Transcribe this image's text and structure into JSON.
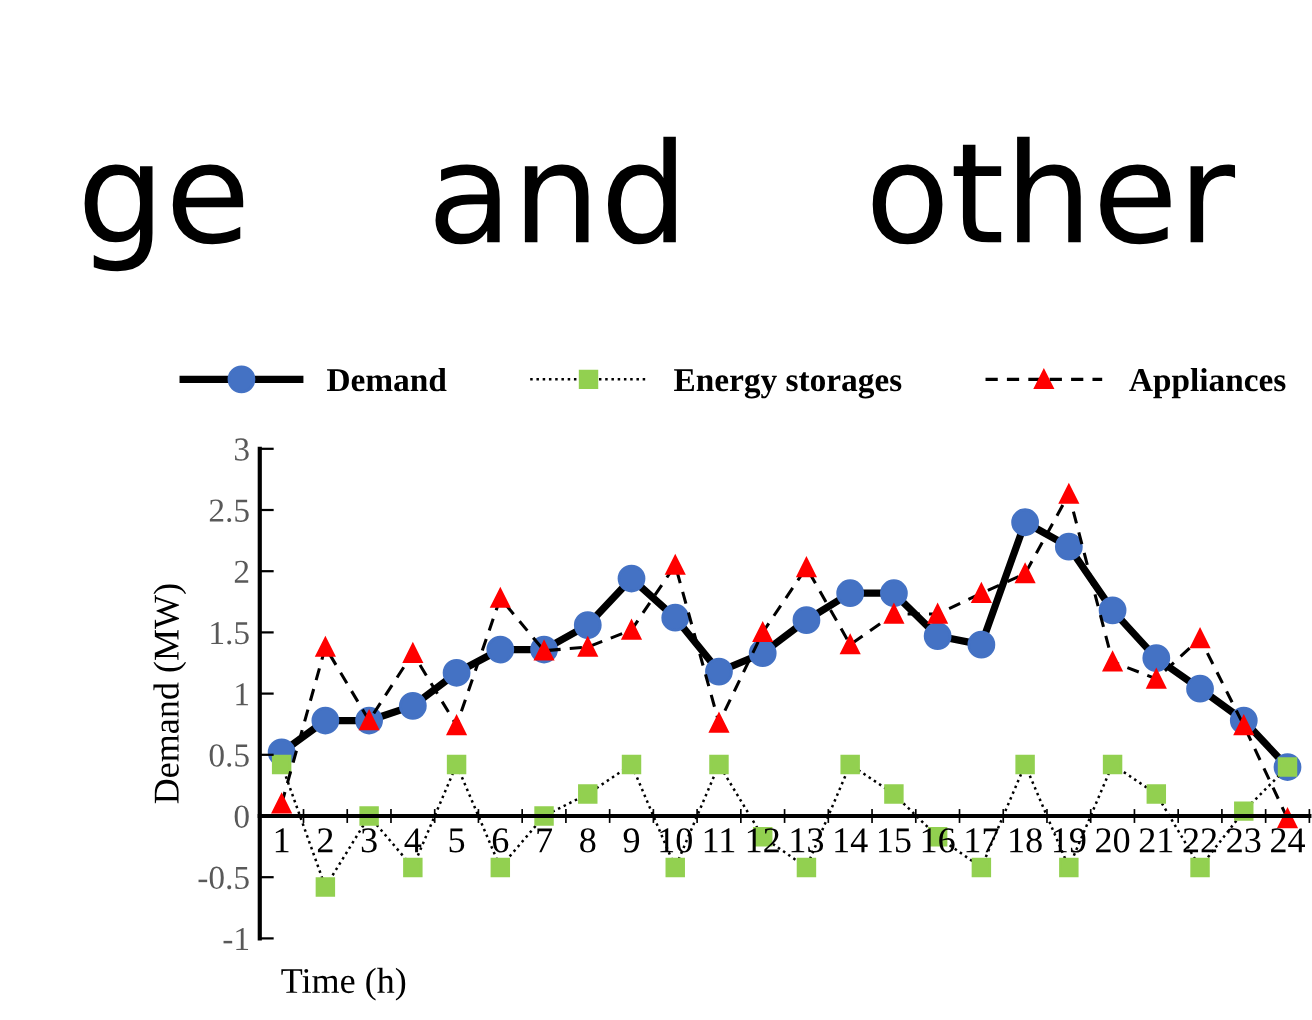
{
  "chart_data": {
    "type": "line",
    "title": "ge    and    other",
    "xlabel": "Time (h)",
    "ylabel": "Demand (MW)",
    "categories": [
      "1",
      "2",
      "3",
      "4",
      "5",
      "6",
      "7",
      "8",
      "9",
      "10",
      "11",
      "12",
      "13",
      "14",
      "15",
      "16",
      "17",
      "18",
      "19",
      "20",
      "21",
      "22",
      "23",
      "24"
    ],
    "series": [
      {
        "name": "Demand",
        "color": "#4472c4",
        "marker": "circle",
        "line_style": "solid",
        "values": [
          0.52,
          0.78,
          0.78,
          0.9,
          1.17,
          1.36,
          1.36,
          1.56,
          1.94,
          1.62,
          1.18,
          1.33,
          1.6,
          1.82,
          1.82,
          1.47,
          1.4,
          2.4,
          2.2,
          1.68,
          1.29,
          1.04,
          0.78,
          0.4
        ]
      },
      {
        "name": "Energy storages",
        "color": "#92d050",
        "marker": "square",
        "line_style": "dotted",
        "values": [
          0.42,
          -0.58,
          0,
          -0.42,
          0.42,
          -0.42,
          0,
          0.18,
          0.42,
          -0.42,
          0.42,
          -0.17,
          -0.42,
          0.42,
          0.18,
          -0.17,
          -0.42,
          0.42,
          -0.42,
          0.42,
          0.18,
          -0.42,
          0.04,
          0.4
        ]
      },
      {
        "name": "Appliances",
        "color": "#ff0000",
        "marker": "triangle",
        "line_style": "dashed",
        "values": [
          0.1,
          1.38,
          0.78,
          1.33,
          0.74,
          1.78,
          1.35,
          1.38,
          1.52,
          2.05,
          0.76,
          1.5,
          2.03,
          1.4,
          1.65,
          1.65,
          1.82,
          1.98,
          2.63,
          1.26,
          1.12,
          1.45,
          0.74,
          -0.02
        ]
      }
    ],
    "ylim": [
      -1,
      3
    ],
    "yticks": [
      -1,
      -0.5,
      0,
      0.5,
      1,
      1.5,
      2,
      2.5,
      3
    ],
    "grid": false,
    "legend": "top"
  }
}
